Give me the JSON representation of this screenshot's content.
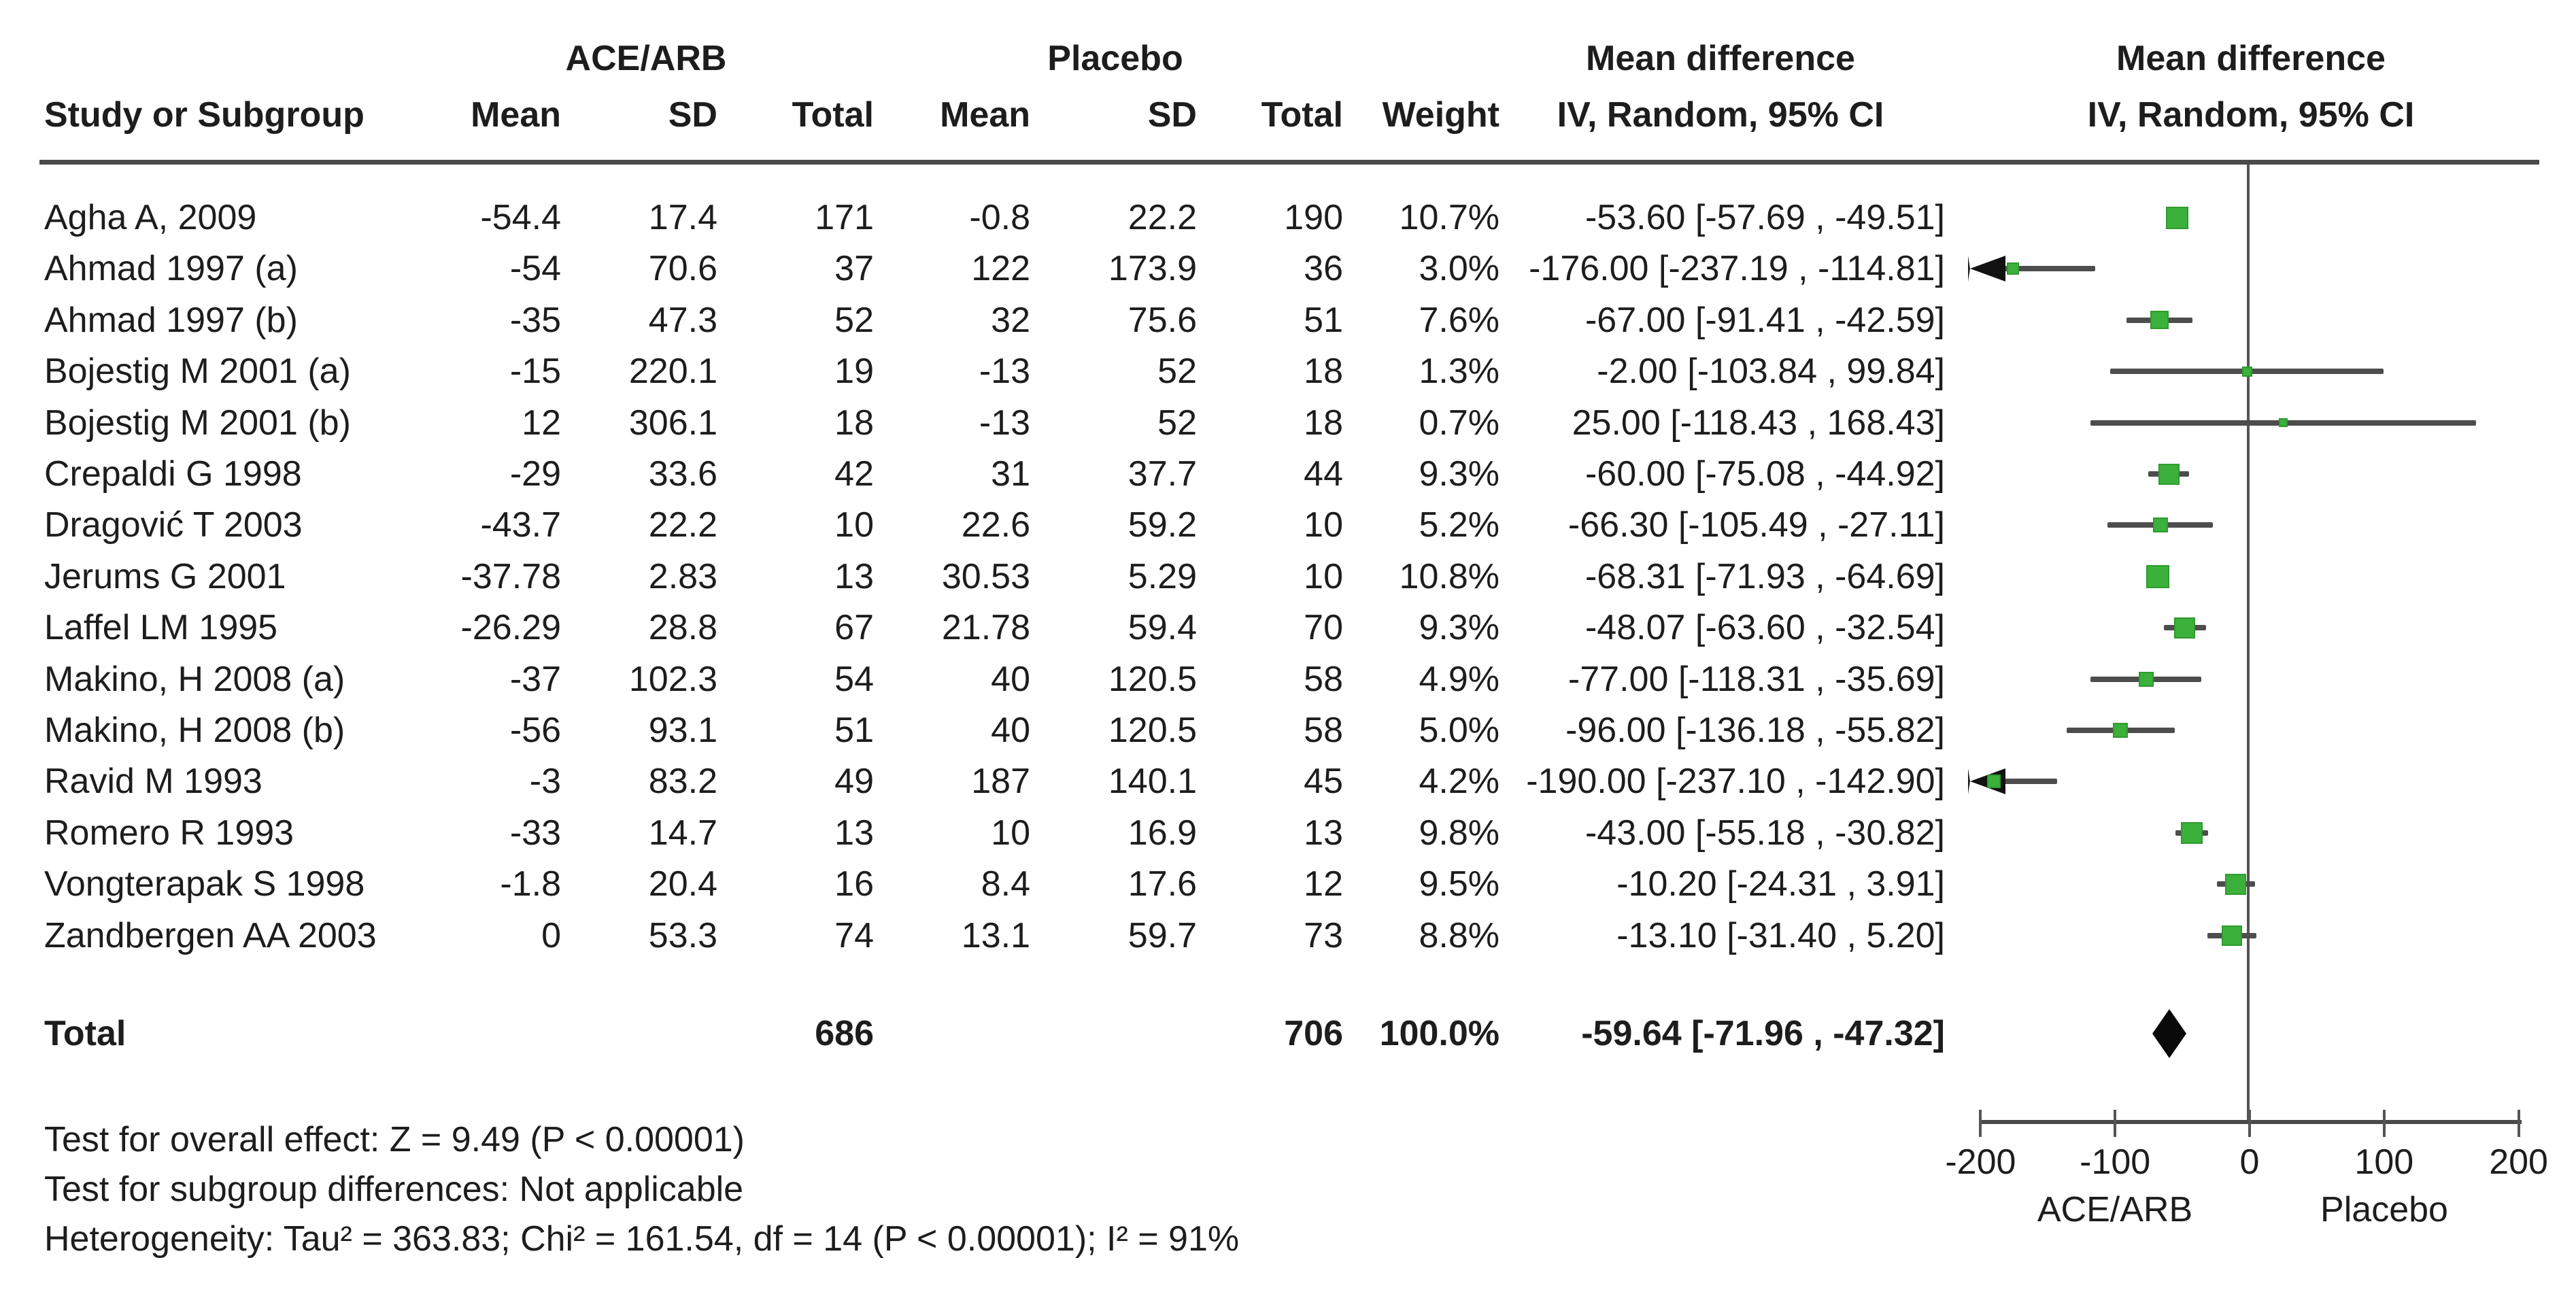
{
  "ui": {
    "header": {
      "study_col": "Study or Subgroup",
      "group1": "ACE/ARB",
      "group2": "Placebo",
      "mean": "Mean",
      "sd": "SD",
      "total": "Total",
      "weight": "Weight",
      "md_title": "Mean difference",
      "md_model": "IV, Random, 95% CI"
    },
    "footer": {
      "overall_effect": "Test for overall effect: Z = 9.49 (P < 0.00001)",
      "subgroup": "Test for subgroup differences: Not applicable",
      "heterogeneity": "Heterogeneity: Tau² = 363.83; Chi² = 161.54, df = 14 (P < 0.00001); I² = 91%"
    },
    "colors": {
      "marker_green": "#3bb03b",
      "ci_line": "#4d4d4d",
      "diamond_black": "#0a0a0a",
      "axis_gray": "#555555"
    }
  },
  "chart_data": {
    "type": "scatter",
    "subtype": "forest-plot-meta-analysis",
    "title": "Mean difference — ACE/ARB vs Placebo",
    "xlabel": "Mean difference IV, Random, 95% CI",
    "ylabel": "",
    "grid": false,
    "legend_position": "none",
    "x_axis": {
      "min": -200,
      "max": 200,
      "ticks": [
        -200,
        -100,
        0,
        100,
        200
      ],
      "left_group_label": "ACE/ARB",
      "right_group_label": "Placebo"
    },
    "studies": [
      {
        "name": "Agha A, 2009",
        "ace_mean": "-54.4",
        "ace_sd": "17.4",
        "ace_total": "171",
        "pl_mean": "-0.8",
        "pl_sd": "22.2",
        "pl_total": "190",
        "weight": "10.7%",
        "weight_pct": 10.7,
        "ci_text": "-53.60 [-57.69 , -49.51]",
        "estimate": -53.6,
        "ci_low": -57.69,
        "ci_high": -49.51
      },
      {
        "name": "Ahmad 1997 (a)",
        "ace_mean": "-54",
        "ace_sd": "70.6",
        "ace_total": "37",
        "pl_mean": "122",
        "pl_sd": "173.9",
        "pl_total": "36",
        "weight": "3.0%",
        "weight_pct": 3.0,
        "ci_text": "-176.00 [-237.19 , -114.81]",
        "estimate": -176.0,
        "ci_low": -237.19,
        "ci_high": -114.81
      },
      {
        "name": "Ahmad 1997 (b)",
        "ace_mean": "-35",
        "ace_sd": "47.3",
        "ace_total": "52",
        "pl_mean": "32",
        "pl_sd": "75.6",
        "pl_total": "51",
        "weight": "7.6%",
        "weight_pct": 7.6,
        "ci_text": "-67.00 [-91.41 , -42.59]",
        "estimate": -67.0,
        "ci_low": -91.41,
        "ci_high": -42.59
      },
      {
        "name": "Bojestig M 2001 (a)",
        "ace_mean": "-15",
        "ace_sd": "220.1",
        "ace_total": "19",
        "pl_mean": "-13",
        "pl_sd": "52",
        "pl_total": "18",
        "weight": "1.3%",
        "weight_pct": 1.3,
        "ci_text": "-2.00 [-103.84 , 99.84]",
        "estimate": -2.0,
        "ci_low": -103.84,
        "ci_high": 99.84
      },
      {
        "name": "Bojestig M 2001 (b)",
        "ace_mean": "12",
        "ace_sd": "306.1",
        "ace_total": "18",
        "pl_mean": "-13",
        "pl_sd": "52",
        "pl_total": "18",
        "weight": "0.7%",
        "weight_pct": 0.7,
        "ci_text": "25.00 [-118.43 , 168.43]",
        "estimate": 25.0,
        "ci_low": -118.43,
        "ci_high": 168.43
      },
      {
        "name": "Crepaldi G 1998",
        "ace_mean": "-29",
        "ace_sd": "33.6",
        "ace_total": "42",
        "pl_mean": "31",
        "pl_sd": "37.7",
        "pl_total": "44",
        "weight": "9.3%",
        "weight_pct": 9.3,
        "ci_text": "-60.00 [-75.08 , -44.92]",
        "estimate": -60.0,
        "ci_low": -75.08,
        "ci_high": -44.92
      },
      {
        "name": "Dragović T 2003",
        "ace_mean": "-43.7",
        "ace_sd": "22.2",
        "ace_total": "10",
        "pl_mean": "22.6",
        "pl_sd": "59.2",
        "pl_total": "10",
        "weight": "5.2%",
        "weight_pct": 5.2,
        "ci_text": "-66.30 [-105.49 , -27.11]",
        "estimate": -66.3,
        "ci_low": -105.49,
        "ci_high": -27.11
      },
      {
        "name": "Jerums G 2001",
        "ace_mean": "-37.78",
        "ace_sd": "2.83",
        "ace_total": "13",
        "pl_mean": "30.53",
        "pl_sd": "5.29",
        "pl_total": "10",
        "weight": "10.8%",
        "weight_pct": 10.8,
        "ci_text": "-68.31 [-71.93 , -64.69]",
        "estimate": -68.31,
        "ci_low": -71.93,
        "ci_high": -64.69
      },
      {
        "name": "Laffel LM 1995",
        "ace_mean": "-26.29",
        "ace_sd": "28.8",
        "ace_total": "67",
        "pl_mean": "21.78",
        "pl_sd": "59.4",
        "pl_total": "70",
        "weight": "9.3%",
        "weight_pct": 9.3,
        "ci_text": "-48.07 [-63.60 , -32.54]",
        "estimate": -48.07,
        "ci_low": -63.6,
        "ci_high": -32.54
      },
      {
        "name": "Makino, H 2008 (a)",
        "ace_mean": "-37",
        "ace_sd": "102.3",
        "ace_total": "54",
        "pl_mean": "40",
        "pl_sd": "120.5",
        "pl_total": "58",
        "weight": "4.9%",
        "weight_pct": 4.9,
        "ci_text": "-77.00 [-118.31 , -35.69]",
        "estimate": -77.0,
        "ci_low": -118.31,
        "ci_high": -35.69
      },
      {
        "name": "Makino, H 2008 (b)",
        "ace_mean": "-56",
        "ace_sd": "93.1",
        "ace_total": "51",
        "pl_mean": "40",
        "pl_sd": "120.5",
        "pl_total": "58",
        "weight": "5.0%",
        "weight_pct": 5.0,
        "ci_text": "-96.00 [-136.18 , -55.82]",
        "estimate": -96.0,
        "ci_low": -136.18,
        "ci_high": -55.82
      },
      {
        "name": "Ravid M 1993",
        "ace_mean": "-3",
        "ace_sd": "83.2",
        "ace_total": "49",
        "pl_mean": "187",
        "pl_sd": "140.1",
        "pl_total": "45",
        "weight": "4.2%",
        "weight_pct": 4.2,
        "ci_text": "-190.00 [-237.10 , -142.90]",
        "estimate": -190.0,
        "ci_low": -237.1,
        "ci_high": -142.9
      },
      {
        "name": "Romero R 1993",
        "ace_mean": "-33",
        "ace_sd": "14.7",
        "ace_total": "13",
        "pl_mean": "10",
        "pl_sd": "16.9",
        "pl_total": "13",
        "weight": "9.8%",
        "weight_pct": 9.8,
        "ci_text": "-43.00 [-55.18 , -30.82]",
        "estimate": -43.0,
        "ci_low": -55.18,
        "ci_high": -30.82
      },
      {
        "name": "Vongterapak S 1998",
        "ace_mean": "-1.8",
        "ace_sd": "20.4",
        "ace_total": "16",
        "pl_mean": "8.4",
        "pl_sd": "17.6",
        "pl_total": "12",
        "weight": "9.5%",
        "weight_pct": 9.5,
        "ci_text": "-10.20 [-24.31 , 3.91]",
        "estimate": -10.2,
        "ci_low": -24.31,
        "ci_high": 3.91
      },
      {
        "name": "Zandbergen AA 2003",
        "ace_mean": "0",
        "ace_sd": "53.3",
        "ace_total": "74",
        "pl_mean": "13.1",
        "pl_sd": "59.7",
        "pl_total": "73",
        "weight": "8.8%",
        "weight_pct": 8.8,
        "ci_text": "-13.10 [-31.40 , 5.20]",
        "estimate": -13.1,
        "ci_low": -31.4,
        "ci_high": 5.2
      }
    ],
    "total": {
      "label": "Total",
      "ace_total": "686",
      "pl_total": "706",
      "weight": "100.0%",
      "weight_pct": 100.0,
      "ci_text": "-59.64 [-71.96 , -47.32]",
      "estimate": -59.64,
      "ci_low": -71.96,
      "ci_high": -47.32
    }
  }
}
